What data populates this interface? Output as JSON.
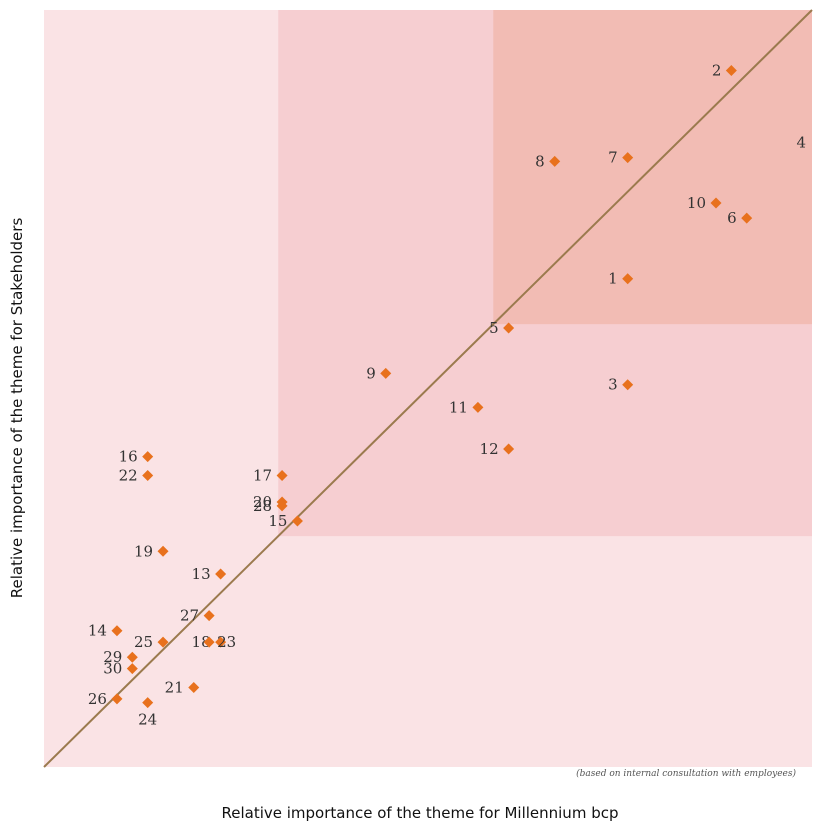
{
  "chart_data": {
    "type": "scatter",
    "xlabel": "Relative importance of the theme for Millennium bcp",
    "ylabel": "Relative importance of the theme for Stakeholders",
    "note": "(based on internal consultation with employees)",
    "xlim": [
      0,
      100
    ],
    "ylim": [
      0,
      100
    ],
    "grid": false,
    "trend_line": {
      "from": [
        0,
        0
      ],
      "to": [
        100,
        100
      ]
    },
    "regions": [
      {
        "name": "low",
        "x_from": 0,
        "y_from": 0,
        "color": "#fae3e5"
      },
      {
        "name": "medium",
        "x_from": 30.5,
        "y_from": 30.5,
        "color": "#f6ced1"
      },
      {
        "name": "high",
        "x_from": 58.5,
        "y_from": 58.5,
        "color": "#f2bcb4"
      }
    ],
    "colors": {
      "marker": "#e8711d",
      "line": "#9b7a4e"
    },
    "points": [
      {
        "label": "1",
        "x": 76,
        "y": 64.5,
        "pos": "left"
      },
      {
        "label": "2",
        "x": 89.5,
        "y": 92,
        "pos": "left"
      },
      {
        "label": "3",
        "x": 76,
        "y": 50.5,
        "pos": "left"
      },
      {
        "label": "4",
        "x": 103,
        "y": 82.5,
        "pos": "none"
      },
      {
        "label": "5",
        "x": 60.5,
        "y": 58,
        "pos": "left"
      },
      {
        "label": "6",
        "x": 91.5,
        "y": 72.5,
        "pos": "left"
      },
      {
        "label": "7",
        "x": 76,
        "y": 80.5,
        "pos": "left"
      },
      {
        "label": "8",
        "x": 66.5,
        "y": 80,
        "pos": "left"
      },
      {
        "label": "9",
        "x": 44.5,
        "y": 52,
        "pos": "left"
      },
      {
        "label": "10",
        "x": 87.5,
        "y": 74.5,
        "pos": "left"
      },
      {
        "label": "11",
        "x": 56.5,
        "y": 47.5,
        "pos": "left"
      },
      {
        "label": "12",
        "x": 60.5,
        "y": 42,
        "pos": "left"
      },
      {
        "label": "13",
        "x": 23,
        "y": 25.5,
        "pos": "left"
      },
      {
        "label": "14",
        "x": 9.5,
        "y": 18,
        "pos": "left"
      },
      {
        "label": "15",
        "x": 33,
        "y": 32.5,
        "pos": "left"
      },
      {
        "label": "16",
        "x": 13.5,
        "y": 41,
        "pos": "left"
      },
      {
        "label": "17",
        "x": 31,
        "y": 38.5,
        "pos": "left"
      },
      {
        "label": "18",
        "x": 23,
        "y": 16.5,
        "pos": "left"
      },
      {
        "label": "19",
        "x": 15.5,
        "y": 28.5,
        "pos": "left"
      },
      {
        "label": "20",
        "x": 31,
        "y": 35,
        "pos": "left"
      },
      {
        "label": "21",
        "x": 19.5,
        "y": 10.5,
        "pos": "left"
      },
      {
        "label": "22",
        "x": 13.5,
        "y": 38.5,
        "pos": "left"
      },
      {
        "label": "23",
        "x": 21.5,
        "y": 16.5,
        "pos": "right"
      },
      {
        "label": "24",
        "x": 13.5,
        "y": 8.5,
        "pos": "below"
      },
      {
        "label": "25",
        "x": 15.5,
        "y": 16.5,
        "pos": "left"
      },
      {
        "label": "26",
        "x": 9.5,
        "y": 9,
        "pos": "left"
      },
      {
        "label": "27",
        "x": 21.5,
        "y": 20,
        "pos": "left"
      },
      {
        "label": "28",
        "x": 31,
        "y": 34.5,
        "pos": "left"
      },
      {
        "label": "29",
        "x": 11.5,
        "y": 14.5,
        "pos": "left"
      },
      {
        "label": "30",
        "x": 11.5,
        "y": 13,
        "pos": "left"
      }
    ]
  }
}
